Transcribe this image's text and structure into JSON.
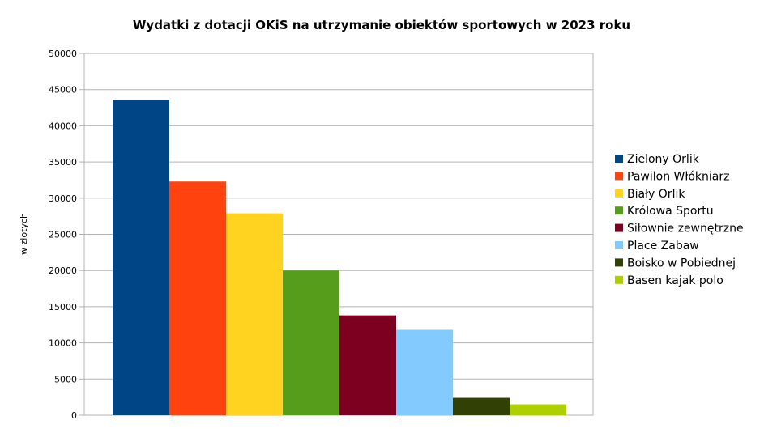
{
  "chart_data": {
    "type": "bar",
    "title": "Wydatki z dotacji OKiS na utrzymanie obiektów sportowych w 2023 roku",
    "ylabel": "w złotych",
    "xlabel": "",
    "ylim": [
      0,
      50000
    ],
    "ytick_step": 5000,
    "yticks": [
      "0",
      "5000",
      "10000",
      "15000",
      "20000",
      "25000",
      "30000",
      "35000",
      "40000",
      "45000",
      "50000"
    ],
    "grid": true,
    "legend_position": "right",
    "series": [
      {
        "name": "Zielony Orlik",
        "value": 43600,
        "color": "#004586"
      },
      {
        "name": "Pawilon Włókniarz",
        "value": 32300,
        "color": "#ff420e"
      },
      {
        "name": "Biały Orlik",
        "value": 27900,
        "color": "#ffd320"
      },
      {
        "name": "Królowa Sportu",
        "value": 20000,
        "color": "#579d1c"
      },
      {
        "name": "Siłownie zewnętrzne",
        "value": 13800,
        "color": "#7e0021"
      },
      {
        "name": "Place Zabaw",
        "value": 11800,
        "color": "#83caff"
      },
      {
        "name": "Boisko w Pobiednej",
        "value": 2400,
        "color": "#314004"
      },
      {
        "name": "Basen kajak polo",
        "value": 1500,
        "color": "#aecf00"
      }
    ]
  }
}
